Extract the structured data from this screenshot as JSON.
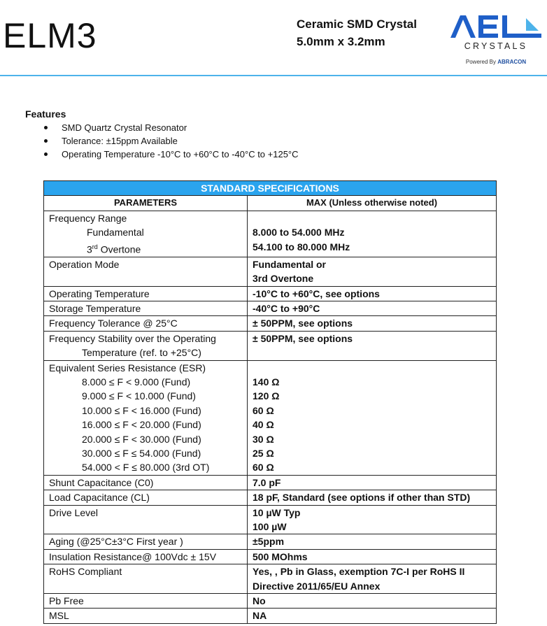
{
  "header": {
    "title": "ELM3",
    "subtitle_line1": "Ceramic SMD Crystal",
    "subtitle_line2": "5.0mm x 3.2mm",
    "logo_text": "AEL CRYSTALS",
    "logo_tagline": "Powered By ABRACON",
    "accent": "#2aa4ee"
  },
  "features": {
    "heading": "Features",
    "items": [
      "SMD Quartz Crystal Resonator",
      "Tolerance: ±15ppm Available",
      "Operating Temperature -10°C to +60°C to -40°C to +125°C"
    ]
  },
  "spec": {
    "title": "STANDARD SPECIFICATIONS",
    "col1": "PARAMETERS",
    "col2": "MAX (Unless otherwise noted)",
    "rows": [
      {
        "p": [
          "Frequency Range",
          "Fundamental",
          "3rd Overtone"
        ],
        "v": [
          "",
          "8.000 to 54.000 MHz",
          "54.100 to 80.000 MHz"
        ]
      },
      {
        "p": [
          "Operation Mode"
        ],
        "v": [
          "Fundamental or",
          "3rd Overtone"
        ]
      },
      {
        "p": [
          "Operating Temperature"
        ],
        "v": [
          "-10°C to +60°C, see options"
        ]
      },
      {
        "p": [
          "Storage Temperature"
        ],
        "v": [
          "-40°C to +90°C"
        ]
      },
      {
        "p": [
          "Frequency Tolerance @ 25°C"
        ],
        "v": [
          "± 50PPM, see options"
        ]
      },
      {
        "p": [
          "Frequency Stability over the Operating",
          "Temperature (ref. to +25°C)"
        ],
        "v": [
          "± 50PPM, see options"
        ]
      },
      {
        "p": [
          "Equivalent Series Resistance (ESR)",
          "8.000 ≤ F < 9.000 (Fund)",
          "9.000 ≤ F < 10.000 (Fund)",
          "10.000 ≤ F < 16.000 (Fund)",
          "16.000 ≤ F < 20.000 (Fund)",
          "20.000 ≤ F < 30.000 (Fund)",
          "30.000 ≤ F ≤ 54.000 (Fund)",
          "54.000 < F ≤ 80.000 (3rd OT)"
        ],
        "v": [
          "",
          "140 Ω",
          "120 Ω",
          "60 Ω",
          "40 Ω",
          "30 Ω",
          "25 Ω",
          "60 Ω"
        ]
      },
      {
        "p": [
          "Shunt Capacitance (C0)"
        ],
        "v": [
          "7.0 pF"
        ]
      },
      {
        "p": [
          "Load Capacitance (CL)"
        ],
        "v": [
          "18 pF, Standard (see options if other than STD)"
        ]
      },
      {
        "p": [
          "Drive Level"
        ],
        "v": [
          "10 µW Typ",
          "100  µW"
        ]
      },
      {
        "p": [
          "Aging (@25°C±3°C First year )"
        ],
        "v": [
          "±5ppm"
        ]
      },
      {
        "p": [
          "Insulation Resistance@ 100Vdc ± 15V"
        ],
        "v": [
          "500 MOhms"
        ]
      },
      {
        "p": [
          "RoHS Compliant"
        ],
        "v": [
          "Yes, , Pb in Glass, exemption 7C-I per RoHS II",
          "Directive 2011/65/EU Annex"
        ]
      },
      {
        "p": [
          "Pb Free"
        ],
        "v": [
          "No"
        ]
      },
      {
        "p": [
          "MSL"
        ],
        "v": [
          "NA"
        ]
      }
    ]
  }
}
